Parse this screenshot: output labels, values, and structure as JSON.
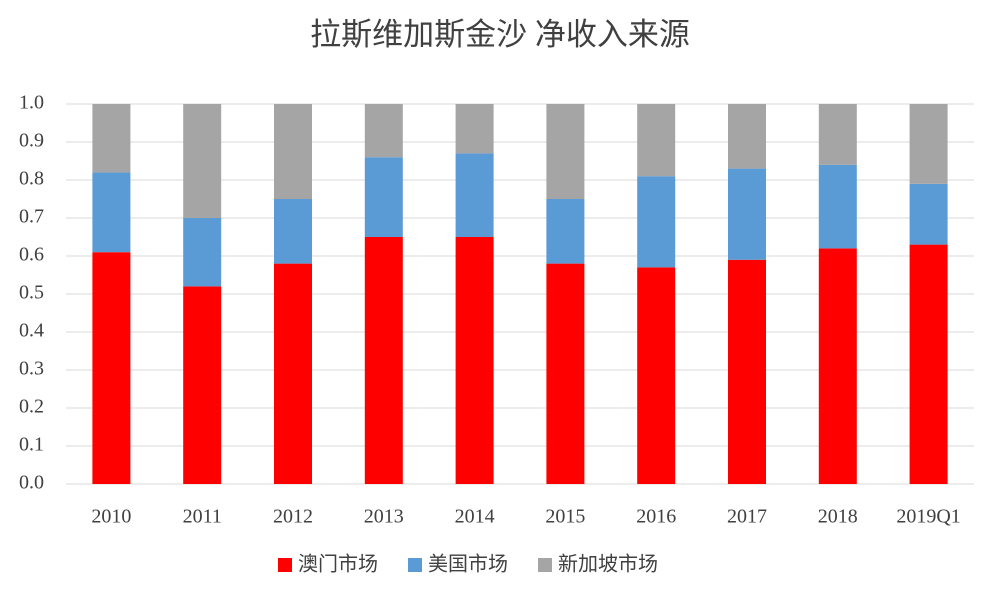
{
  "chart_data": {
    "type": "stacked_bar",
    "title": "拉斯维加斯金沙  净收入来源",
    "categories": [
      "2010",
      "2011",
      "2012",
      "2013",
      "2014",
      "2015",
      "2016",
      "2017",
      "2018",
      "2019Q1"
    ],
    "series": [
      {
        "name": "澳门市场",
        "color": "#ff0000",
        "values": [
          0.61,
          0.52,
          0.58,
          0.65,
          0.65,
          0.58,
          0.57,
          0.59,
          0.62,
          0.63
        ]
      },
      {
        "name": "美国市场",
        "color": "#5b9bd5",
        "values": [
          0.21,
          0.18,
          0.17,
          0.21,
          0.22,
          0.17,
          0.24,
          0.24,
          0.22,
          0.16
        ]
      },
      {
        "name": "新加坡市场",
        "color": "#a5a5a5",
        "values": [
          0.18,
          0.3,
          0.25,
          0.14,
          0.13,
          0.25,
          0.19,
          0.17,
          0.16,
          0.21
        ]
      }
    ],
    "ylim": [
      0,
      1
    ],
    "yticks": [
      {
        "value": 0,
        "label": "0.0"
      },
      0.1,
      0.2,
      0.3,
      0.4,
      0.5,
      0.6,
      0.7,
      0.8,
      0.9,
      {
        "value": 1,
        "label": "1.0"
      }
    ],
    "grid": true,
    "legend": "bottom"
  }
}
